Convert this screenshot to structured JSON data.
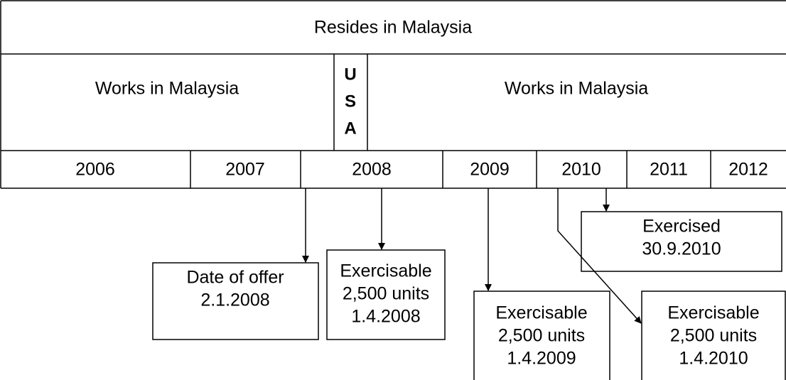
{
  "header": {
    "title": "Resides in Malaysia"
  },
  "work_row": {
    "left": "Works in Malaysia",
    "usa": [
      "U",
      "S",
      "A"
    ],
    "right": "Works in Malaysia"
  },
  "years": [
    "2006",
    "2007",
    "2008",
    "2009",
    "2010",
    "2011",
    "2012"
  ],
  "events": [
    {
      "lines": [
        "Date of offer",
        "2.1.2008"
      ]
    },
    {
      "lines": [
        "Exercisable",
        "2,500 units",
        "1.4.2008"
      ]
    },
    {
      "lines": [
        "Exercised",
        "30.9.2010"
      ]
    },
    {
      "lines": [
        "Exercisable",
        "2,500 units",
        "1.4.2009"
      ]
    },
    {
      "lines": [
        "Exercisable",
        "2,500 units",
        "1.4.2010"
      ]
    }
  ]
}
